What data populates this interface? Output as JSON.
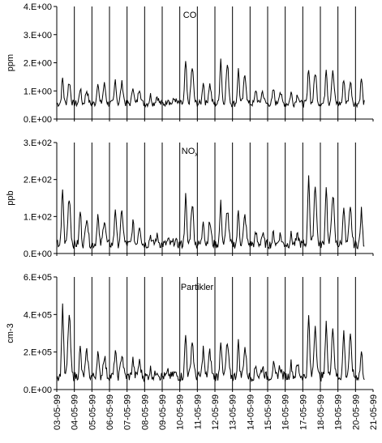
{
  "chart_data": [
    {
      "type": "line",
      "title": "CO",
      "title_sub": "",
      "xlabel": "",
      "ylabel": "ppm",
      "ylim": [
        0,
        4
      ],
      "ytick_labels": [
        "0.E+00",
        "1.E+00",
        "2.E+00",
        "3.E+00",
        "4.E+00"
      ],
      "ytick_values": [
        0,
        1,
        2,
        3,
        4
      ],
      "grid": false,
      "series": [
        {
          "days": 17.5,
          "samples_per_day": 24,
          "baseline": 0.55,
          "amplitude": [
            0.9,
            0.55,
            0.8,
            0.85,
            0.65,
            0.3,
            0.2,
            1.5,
            0.8,
            1.6,
            1.2,
            0.5,
            0.5,
            0.4,
            1.3,
            1.3,
            0.9,
            0.9
          ],
          "noise": 0.12,
          "min": 0.25
        }
      ]
    },
    {
      "type": "line",
      "title": "NO",
      "title_sub": "x",
      "xlabel": "",
      "ylabel": "ppb",
      "ylim": [
        0,
        300
      ],
      "ytick_labels": [
        "0.E+00",
        "1.E+02",
        "2.E+02",
        "3.E+02"
      ],
      "ytick_values": [
        0,
        100,
        200,
        300
      ],
      "grid": false,
      "series": [
        {
          "days": 17.5,
          "samples_per_day": 24,
          "baseline": 25,
          "amplitude": [
            150,
            90,
            80,
            100,
            60,
            25,
            10,
            130,
            70,
            110,
            90,
            30,
            30,
            25,
            190,
            160,
            110,
            90
          ],
          "noise": 12,
          "min": 4
        }
      ]
    },
    {
      "type": "line",
      "title": "Partikler",
      "title_sub": "",
      "xlabel": "",
      "ylabel": "cm-3",
      "ylim": [
        0,
        600000
      ],
      "ytick_labels": [
        "0.E+00",
        "2.E+05",
        "4.E+05",
        "6.E+05"
      ],
      "ytick_values": [
        0,
        200000,
        400000,
        600000
      ],
      "grid": false,
      "series": [
        {
          "days": 17.5,
          "samples_per_day": 24,
          "baseline": 70000,
          "amplitude": [
            380000,
            150000,
            130000,
            140000,
            90000,
            40000,
            20000,
            220000,
            150000,
            200000,
            180000,
            60000,
            60000,
            70000,
            320000,
            300000,
            240000,
            130000
          ],
          "noise": 25000,
          "min": 20000
        }
      ]
    }
  ],
  "x_axis": {
    "categories": [
      "03-05-99",
      "04-05-99",
      "05-05-99",
      "06-05-99",
      "07-05-99",
      "08-05-99",
      "09-05-99",
      "10-05-99",
      "11-05-99",
      "12-05-99",
      "13-05-99",
      "14-05-99",
      "15-05-99",
      "16-05-99",
      "17-05-99",
      "18-05-99",
      "19-05-99",
      "20-05-99",
      "21-05-99"
    ]
  }
}
